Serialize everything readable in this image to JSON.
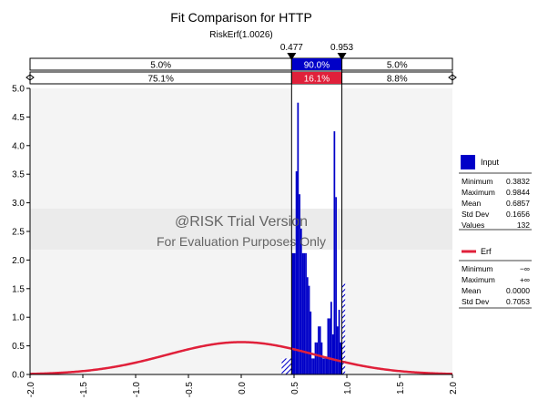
{
  "chart_data": {
    "type": "bar",
    "title": "Fit Comparison for HTTP",
    "subtitle": "RiskErf(1.0026)",
    "xlim": [
      -2.0,
      2.0
    ],
    "ylim": [
      0.0,
      5.0
    ],
    "x_ticks": [
      "-2.0",
      "-1.5",
      "-1.0",
      "-0.5",
      "0.0",
      "0.5",
      "1.0",
      "1.5",
      "2.0"
    ],
    "y_ticks": [
      "0.0",
      "0.5",
      "1.0",
      "1.5",
      "2.0",
      "2.5",
      "3.0",
      "3.5",
      "4.0",
      "4.5",
      "5.0"
    ],
    "delimiters": {
      "left": 0.477,
      "right": 0.953,
      "left_label": "0.477",
      "right_label": "0.953"
    },
    "input_band": {
      "left": "5.0%",
      "middle": "90.0%",
      "right": "5.0%"
    },
    "fit_band": {
      "left": "75.1%",
      "middle": "16.1%",
      "right": "8.8%"
    },
    "histogram": {
      "name": "Input",
      "color": "#0000c8",
      "bins": [
        {
          "x0": 0.383,
          "x1": 0.41,
          "y": 0.28,
          "hatched": true
        },
        {
          "x0": 0.41,
          "x1": 0.45,
          "y": 0.28,
          "hatched": true
        },
        {
          "x0": 0.45,
          "x1": 0.477,
          "y": 0.28,
          "hatched": true
        },
        {
          "x0": 0.477,
          "x1": 0.5,
          "y": 2.12
        },
        {
          "x0": 0.5,
          "x1": 0.515,
          "y": 2.12
        },
        {
          "x0": 0.515,
          "x1": 0.53,
          "y": 3.55
        },
        {
          "x0": 0.53,
          "x1": 0.545,
          "y": 4.75
        },
        {
          "x0": 0.545,
          "x1": 0.56,
          "y": 3.15
        },
        {
          "x0": 0.56,
          "x1": 0.575,
          "y": 2.55
        },
        {
          "x0": 0.575,
          "x1": 0.59,
          "y": 2.12
        },
        {
          "x0": 0.59,
          "x1": 0.605,
          "y": 2.12
        },
        {
          "x0": 0.605,
          "x1": 0.62,
          "y": 2.12
        },
        {
          "x0": 0.62,
          "x1": 0.635,
          "y": 1.7
        },
        {
          "x0": 0.635,
          "x1": 0.65,
          "y": 1.55
        },
        {
          "x0": 0.65,
          "x1": 0.665,
          "y": 1.1
        },
        {
          "x0": 0.665,
          "x1": 0.68,
          "y": 0.28
        },
        {
          "x0": 0.68,
          "x1": 0.695,
          "y": 0.28
        },
        {
          "x0": 0.695,
          "x1": 0.71,
          "y": 0.56
        },
        {
          "x0": 0.71,
          "x1": 0.725,
          "y": 0.56
        },
        {
          "x0": 0.725,
          "x1": 0.74,
          "y": 0.84
        },
        {
          "x0": 0.74,
          "x1": 0.755,
          "y": 0.84
        },
        {
          "x0": 0.755,
          "x1": 0.77,
          "y": 0.56
        },
        {
          "x0": 0.77,
          "x1": 0.785,
          "y": 0.28
        },
        {
          "x0": 0.785,
          "x1": 0.8,
          "y": 0.28
        },
        {
          "x0": 0.8,
          "x1": 0.815,
          "y": 0.28
        },
        {
          "x0": 0.815,
          "x1": 0.83,
          "y": 0.98
        },
        {
          "x0": 0.83,
          "x1": 0.845,
          "y": 0.98
        },
        {
          "x0": 0.845,
          "x1": 0.86,
          "y": 1.27
        },
        {
          "x0": 0.86,
          "x1": 0.875,
          "y": 0.7
        },
        {
          "x0": 0.875,
          "x1": 0.89,
          "y": 4.25
        },
        {
          "x0": 0.89,
          "x1": 0.905,
          "y": 3.1
        },
        {
          "x0": 0.905,
          "x1": 0.92,
          "y": 0.84
        },
        {
          "x0": 0.92,
          "x1": 0.935,
          "y": 1.13
        },
        {
          "x0": 0.935,
          "x1": 0.953,
          "y": 0.56
        },
        {
          "x0": 0.953,
          "x1": 0.984,
          "y": 1.6,
          "hatched": true
        }
      ]
    },
    "fit": {
      "name": "Erf",
      "color": "#e0203a",
      "h": 1.0026
    },
    "legend": {
      "input_title": "Input",
      "input_stats": [
        {
          "label": "Minimum",
          "value": "0.3832"
        },
        {
          "label": "Maximum",
          "value": "0.9844"
        },
        {
          "label": "Mean",
          "value": "0.6857"
        },
        {
          "label": "Std Dev",
          "value": "0.1656"
        },
        {
          "label": "Values",
          "value": "132"
        }
      ],
      "fit_title": "Erf",
      "fit_stats": [
        {
          "label": "Minimum",
          "value": "−∞"
        },
        {
          "label": "Maximum",
          "value": "+∞"
        },
        {
          "label": "Mean",
          "value": "0.0000"
        },
        {
          "label": "Std Dev",
          "value": "0.7053"
        }
      ]
    },
    "watermark": {
      "line1": "@RISK Trial Version",
      "line2": "For Evaluation Purposes Only"
    },
    "grid": false
  }
}
